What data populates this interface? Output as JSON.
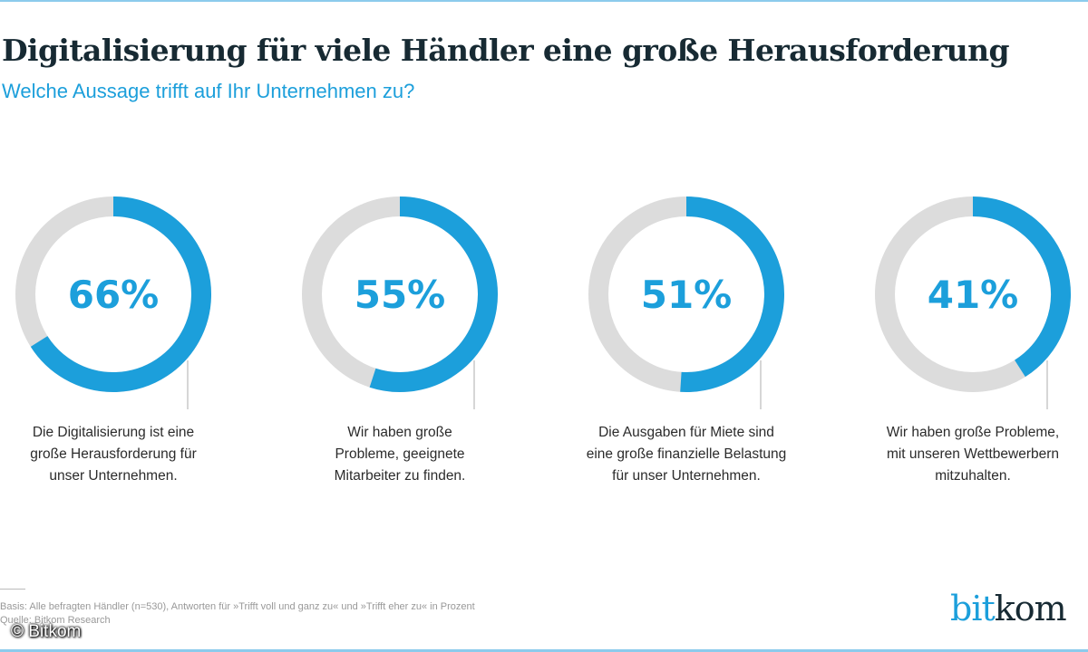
{
  "chart_data": {
    "type": "donut",
    "title": "Digitalisierung für viele Händler eine große Herausforderung",
    "subtitle": "Welche Aussage trifft auf Ihr Unternehmen zu?",
    "unit": "%",
    "items": [
      {
        "value": 66,
        "label_text": "66%",
        "label": [
          "Die Digitalisierung ist eine",
          "große Herausforderung für",
          "unser Unternehmen."
        ]
      },
      {
        "value": 55,
        "label_text": "55%",
        "label": [
          "Wir haben große",
          "Probleme, geeignete",
          "Mitarbeiter zu finden."
        ]
      },
      {
        "value": 51,
        "label_text": "51%",
        "label": [
          "Die Ausgaben für Miete sind",
          "eine große finanzielle Belastung",
          "für unser Unternehmen."
        ]
      },
      {
        "value": 41,
        "label_text": "41%",
        "label": [
          "Wir haben große Probleme,",
          "mit unseren Wettbewerbern",
          "mitzuhalten."
        ]
      }
    ],
    "colors": {
      "filled": "#1c9fdb",
      "remainder": "#dcdcdc"
    }
  },
  "footer": {
    "basis": "Basis: Alle befragten Händler (n=530), Antworten für »Trifft voll und ganz zu« und »Trifft eher zu« in Prozent",
    "source": "Quelle: Bitkom Research",
    "copyright": "© Bitkom"
  },
  "logo": {
    "part1": "bit",
    "part2": "kom"
  }
}
